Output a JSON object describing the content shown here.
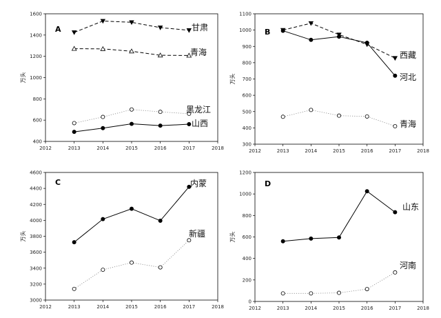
{
  "chart_data": [
    {
      "type": "line",
      "panel": "A",
      "ylabel": "万头",
      "xlim": [
        2012,
        2018
      ],
      "ylim": [
        400,
        1600
      ],
      "xticks": [
        2012,
        2013,
        2014,
        2015,
        2016,
        2017,
        2018
      ],
      "yticks": [
        400,
        600,
        800,
        1000,
        1200,
        1400,
        1600
      ],
      "series": [
        {
          "name": "甘肃",
          "x": [
            2013,
            2014,
            2015,
            2016,
            2017
          ],
          "y": [
            1425,
            1532,
            1520,
            1470,
            1445
          ],
          "line": "dashed",
          "marker": "triangle-down-filled"
        },
        {
          "name": "青海",
          "x": [
            2013,
            2014,
            2015,
            2016,
            2017
          ],
          "y": [
            1272,
            1270,
            1248,
            1210,
            1208
          ],
          "line": "dashed",
          "marker": "triangle-up-open"
        },
        {
          "name": "黑龙江",
          "x": [
            2013,
            2014,
            2015,
            2016,
            2017
          ],
          "y": [
            572,
            630,
            700,
            678,
            660
          ],
          "line": "dotted",
          "marker": "circle-open"
        },
        {
          "name": "山西",
          "x": [
            2013,
            2014,
            2015,
            2016,
            2017
          ],
          "y": [
            490,
            525,
            565,
            548,
            562
          ],
          "line": "solid",
          "marker": "circle-filled"
        }
      ]
    },
    {
      "type": "line",
      "panel": "B",
      "ylabel": "万头",
      "xlim": [
        2012,
        2018
      ],
      "ylim": [
        300,
        1100
      ],
      "xticks": [
        2012,
        2013,
        2014,
        2015,
        2016,
        2017,
        2018
      ],
      "yticks": [
        300,
        400,
        500,
        600,
        700,
        800,
        900,
        1000,
        1100
      ],
      "series": [
        {
          "name": "西藏",
          "x": [
            2013,
            2014,
            2015,
            2016,
            2017
          ],
          "y": [
            1000,
            1042,
            972,
            912,
            828
          ],
          "line": "dashed",
          "marker": "triangle-down-filled"
        },
        {
          "name": "河北",
          "x": [
            2013,
            2014,
            2015,
            2016,
            2017
          ],
          "y": [
            996,
            940,
            960,
            922,
            720
          ],
          "line": "solid",
          "marker": "circle-filled"
        },
        {
          "name": "青海",
          "x": [
            2013,
            2014,
            2015,
            2016,
            2017
          ],
          "y": [
            468,
            510,
            475,
            470,
            410
          ],
          "line": "dotted",
          "marker": "circle-open"
        }
      ]
    },
    {
      "type": "line",
      "panel": "C",
      "ylabel": "万头",
      "xlim": [
        2012,
        2018
      ],
      "ylim": [
        3000,
        4600
      ],
      "xticks": [
        2012,
        2013,
        2014,
        2015,
        2016,
        2017,
        2018
      ],
      "yticks": [
        3000,
        3200,
        3400,
        3600,
        3800,
        4000,
        4200,
        4400,
        4600
      ],
      "series": [
        {
          "name": "内蒙",
          "x": [
            2013,
            2014,
            2015,
            2016,
            2017
          ],
          "y": [
            3725,
            4015,
            4145,
            3995,
            4420
          ],
          "line": "solid",
          "marker": "circle-filled"
        },
        {
          "name": "新疆",
          "x": [
            2013,
            2014,
            2015,
            2016,
            2017
          ],
          "y": [
            3140,
            3380,
            3470,
            3410,
            3750
          ],
          "line": "dotted",
          "marker": "circle-open"
        }
      ]
    },
    {
      "type": "line",
      "panel": "D",
      "ylabel": "万头",
      "xlim": [
        2012,
        2018
      ],
      "ylim": [
        0,
        1200
      ],
      "xticks": [
        2012,
        2013,
        2014,
        2015,
        2016,
        2017,
        2018
      ],
      "yticks": [
        0,
        200,
        400,
        600,
        800,
        1000,
        1200
      ],
      "series": [
        {
          "name": "山东",
          "x": [
            2013,
            2014,
            2015,
            2016,
            2017
          ],
          "y": [
            560,
            585,
            595,
            1025,
            830
          ],
          "line": "solid",
          "marker": "circle-filled"
        },
        {
          "name": "河南",
          "x": [
            2013,
            2014,
            2015,
            2016,
            2017
          ],
          "y": [
            75,
            75,
            80,
            115,
            270
          ],
          "line": "dotted",
          "marker": "circle-open"
        }
      ]
    }
  ]
}
